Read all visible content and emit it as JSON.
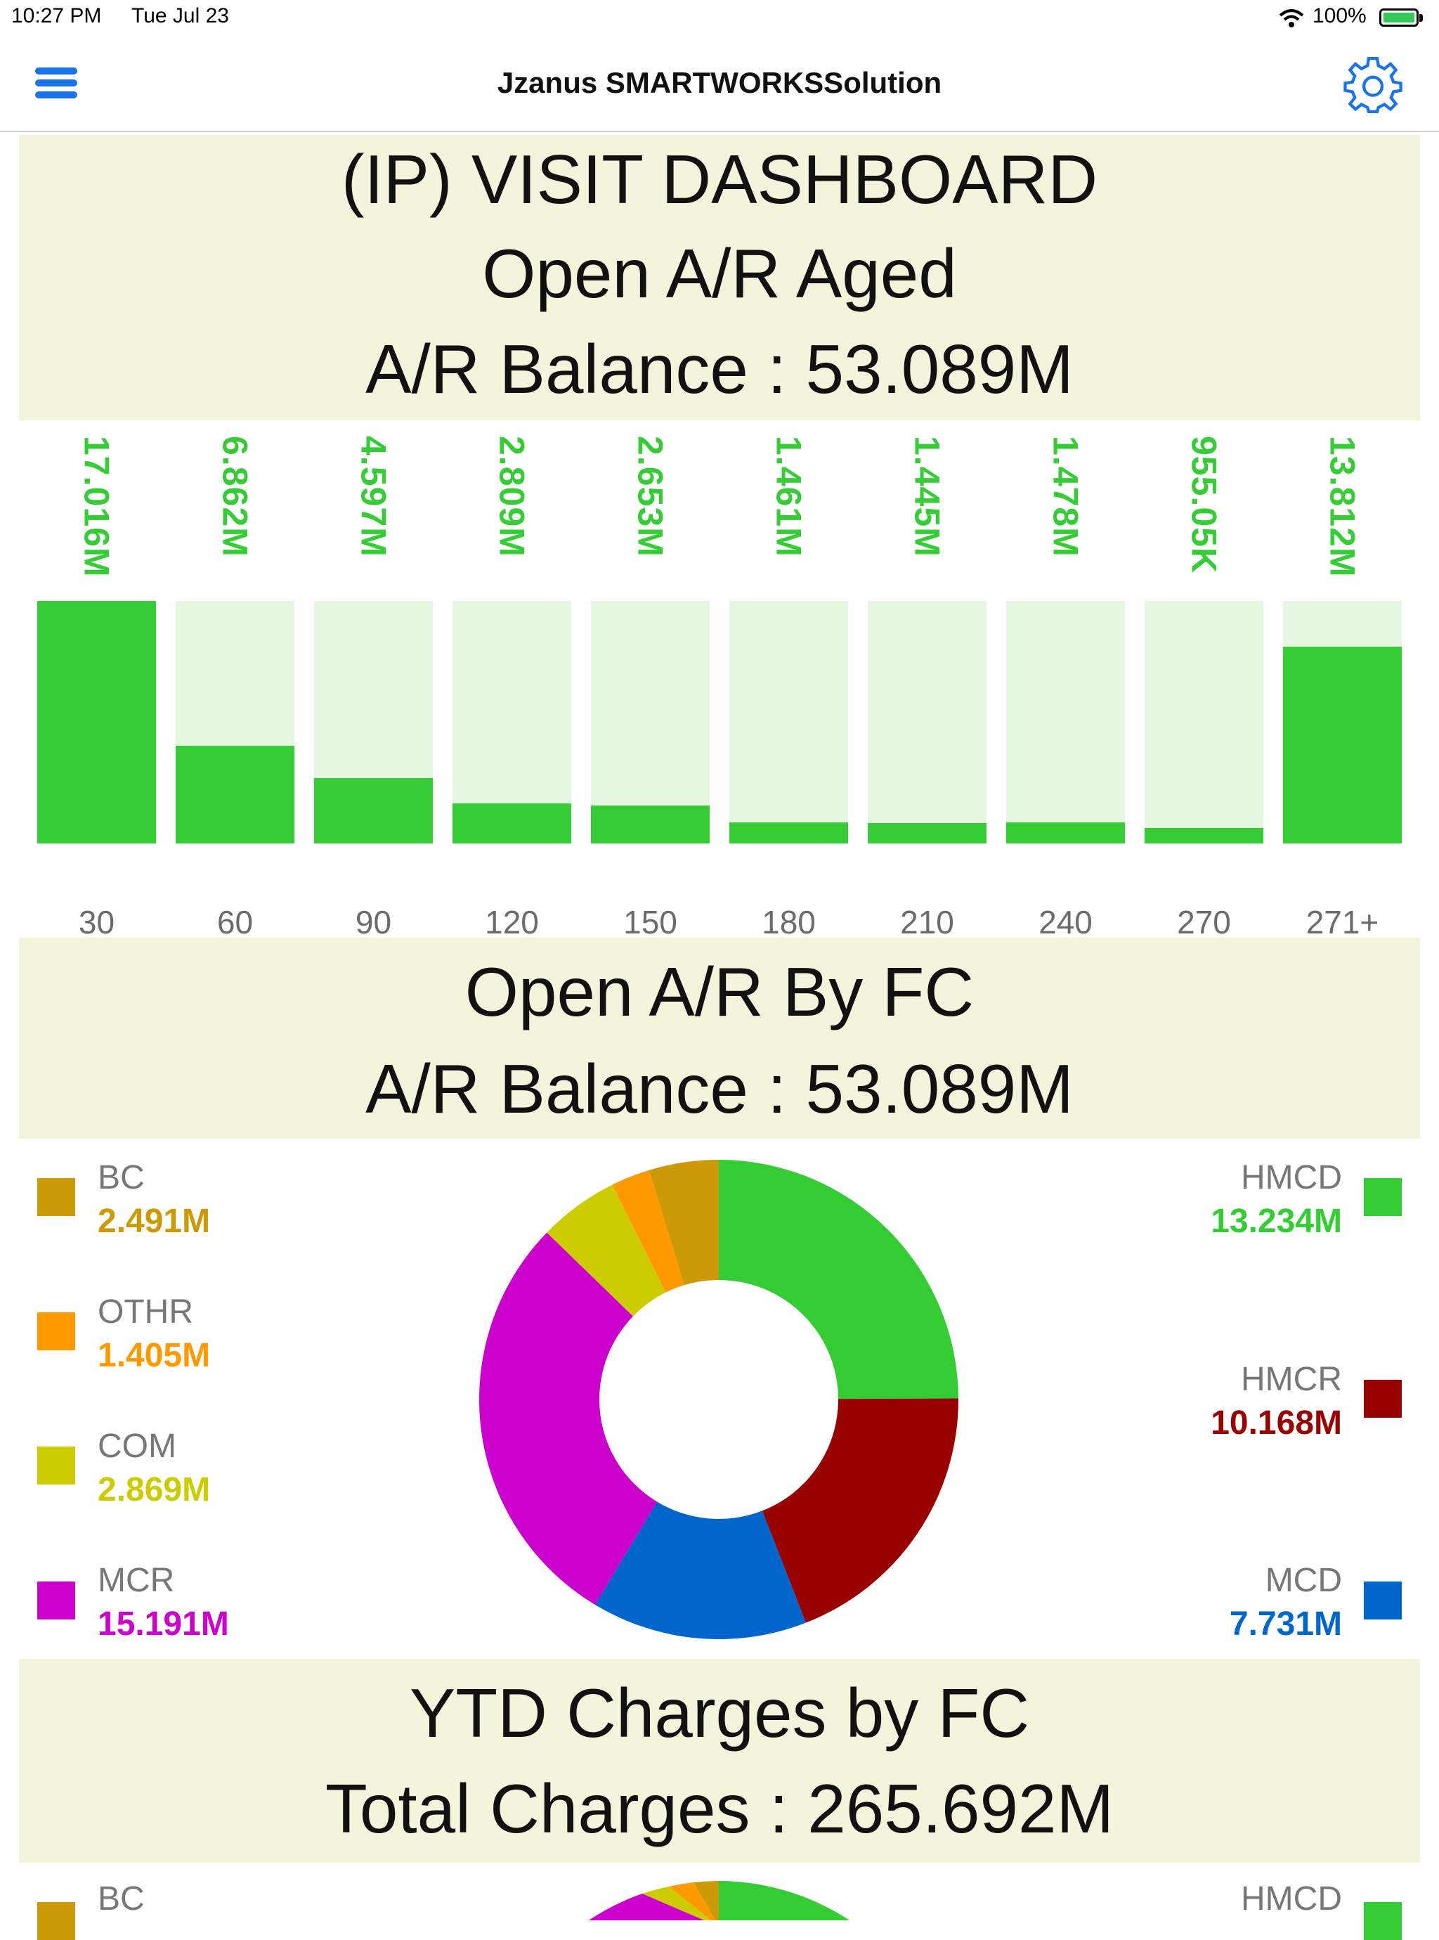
{
  "status_bar": {
    "time": "10:27 PM",
    "date": "Tue Jul 23",
    "battery": "100%"
  },
  "nav": {
    "title": "Jzanus SMARTWORKSSolution",
    "menu_icon": "hamburger-menu-icon",
    "settings_icon": "gear-icon"
  },
  "visit_dashboard": {
    "title": "(IP) VISIT DASHBOARD",
    "subtitle": "Open A/R Aged",
    "balance": "A/R Balance : 53.089M"
  },
  "aged_chart": {
    "labels": [
      "17.016M",
      "6.862M",
      "4.597M",
      "2.809M",
      "2.653M",
      "1.461M",
      "1.445M",
      "1.478M",
      "955.05K",
      "13.812M"
    ]
  },
  "by_fc": {
    "title": "Open A/R By FC",
    "balance": "A/R Balance : 53.089M"
  },
  "legend": {
    "left": [
      {
        "name": "BC",
        "value": "2.491M",
        "color": "#cc9a06"
      },
      {
        "name": "OTHR",
        "value": "1.405M",
        "color": "#ff9900"
      },
      {
        "name": "COM",
        "value": "2.869M",
        "color": "#cccc00"
      },
      {
        "name": "MCR",
        "value": "15.191M",
        "color": "#cc00cc"
      }
    ],
    "right": [
      {
        "name": "HMCD",
        "value": "13.234M",
        "color": "#33cc33"
      },
      {
        "name": "HMCR",
        "value": "10.168M",
        "color": "#990000"
      },
      {
        "name": "MCD",
        "value": "7.731M",
        "color": "#0066cc"
      }
    ]
  },
  "ytd": {
    "title": "YTD Charges by FC",
    "total": "Total Charges : 265.692M"
  },
  "ytd_legend": {
    "left_first": "BC",
    "right_first": "HMCD"
  },
  "chart_data": [
    {
      "type": "bar",
      "title": "Open A/R Aged",
      "categories": [
        "30",
        "60",
        "90",
        "120",
        "150",
        "180",
        "210",
        "240",
        "270",
        "271+"
      ],
      "values": [
        17.016,
        6.862,
        4.597,
        2.809,
        2.653,
        1.461,
        1.445,
        1.478,
        0.95505,
        13.812
      ],
      "ylim": [
        0,
        17.016
      ]
    },
    {
      "type": "pie",
      "title": "Open A/R By FC",
      "labels": [
        "HMCD",
        "HMCR",
        "MCD",
        "MCR",
        "COM",
        "OTHR",
        "BC"
      ],
      "values": [
        13.234,
        10.168,
        7.731,
        15.191,
        2.869,
        1.405,
        2.491
      ],
      "colors": [
        "#33cc33",
        "#990000",
        "#0066cc",
        "#cc00cc",
        "#cccc00",
        "#ff9900",
        "#cc9a06"
      ]
    }
  ]
}
